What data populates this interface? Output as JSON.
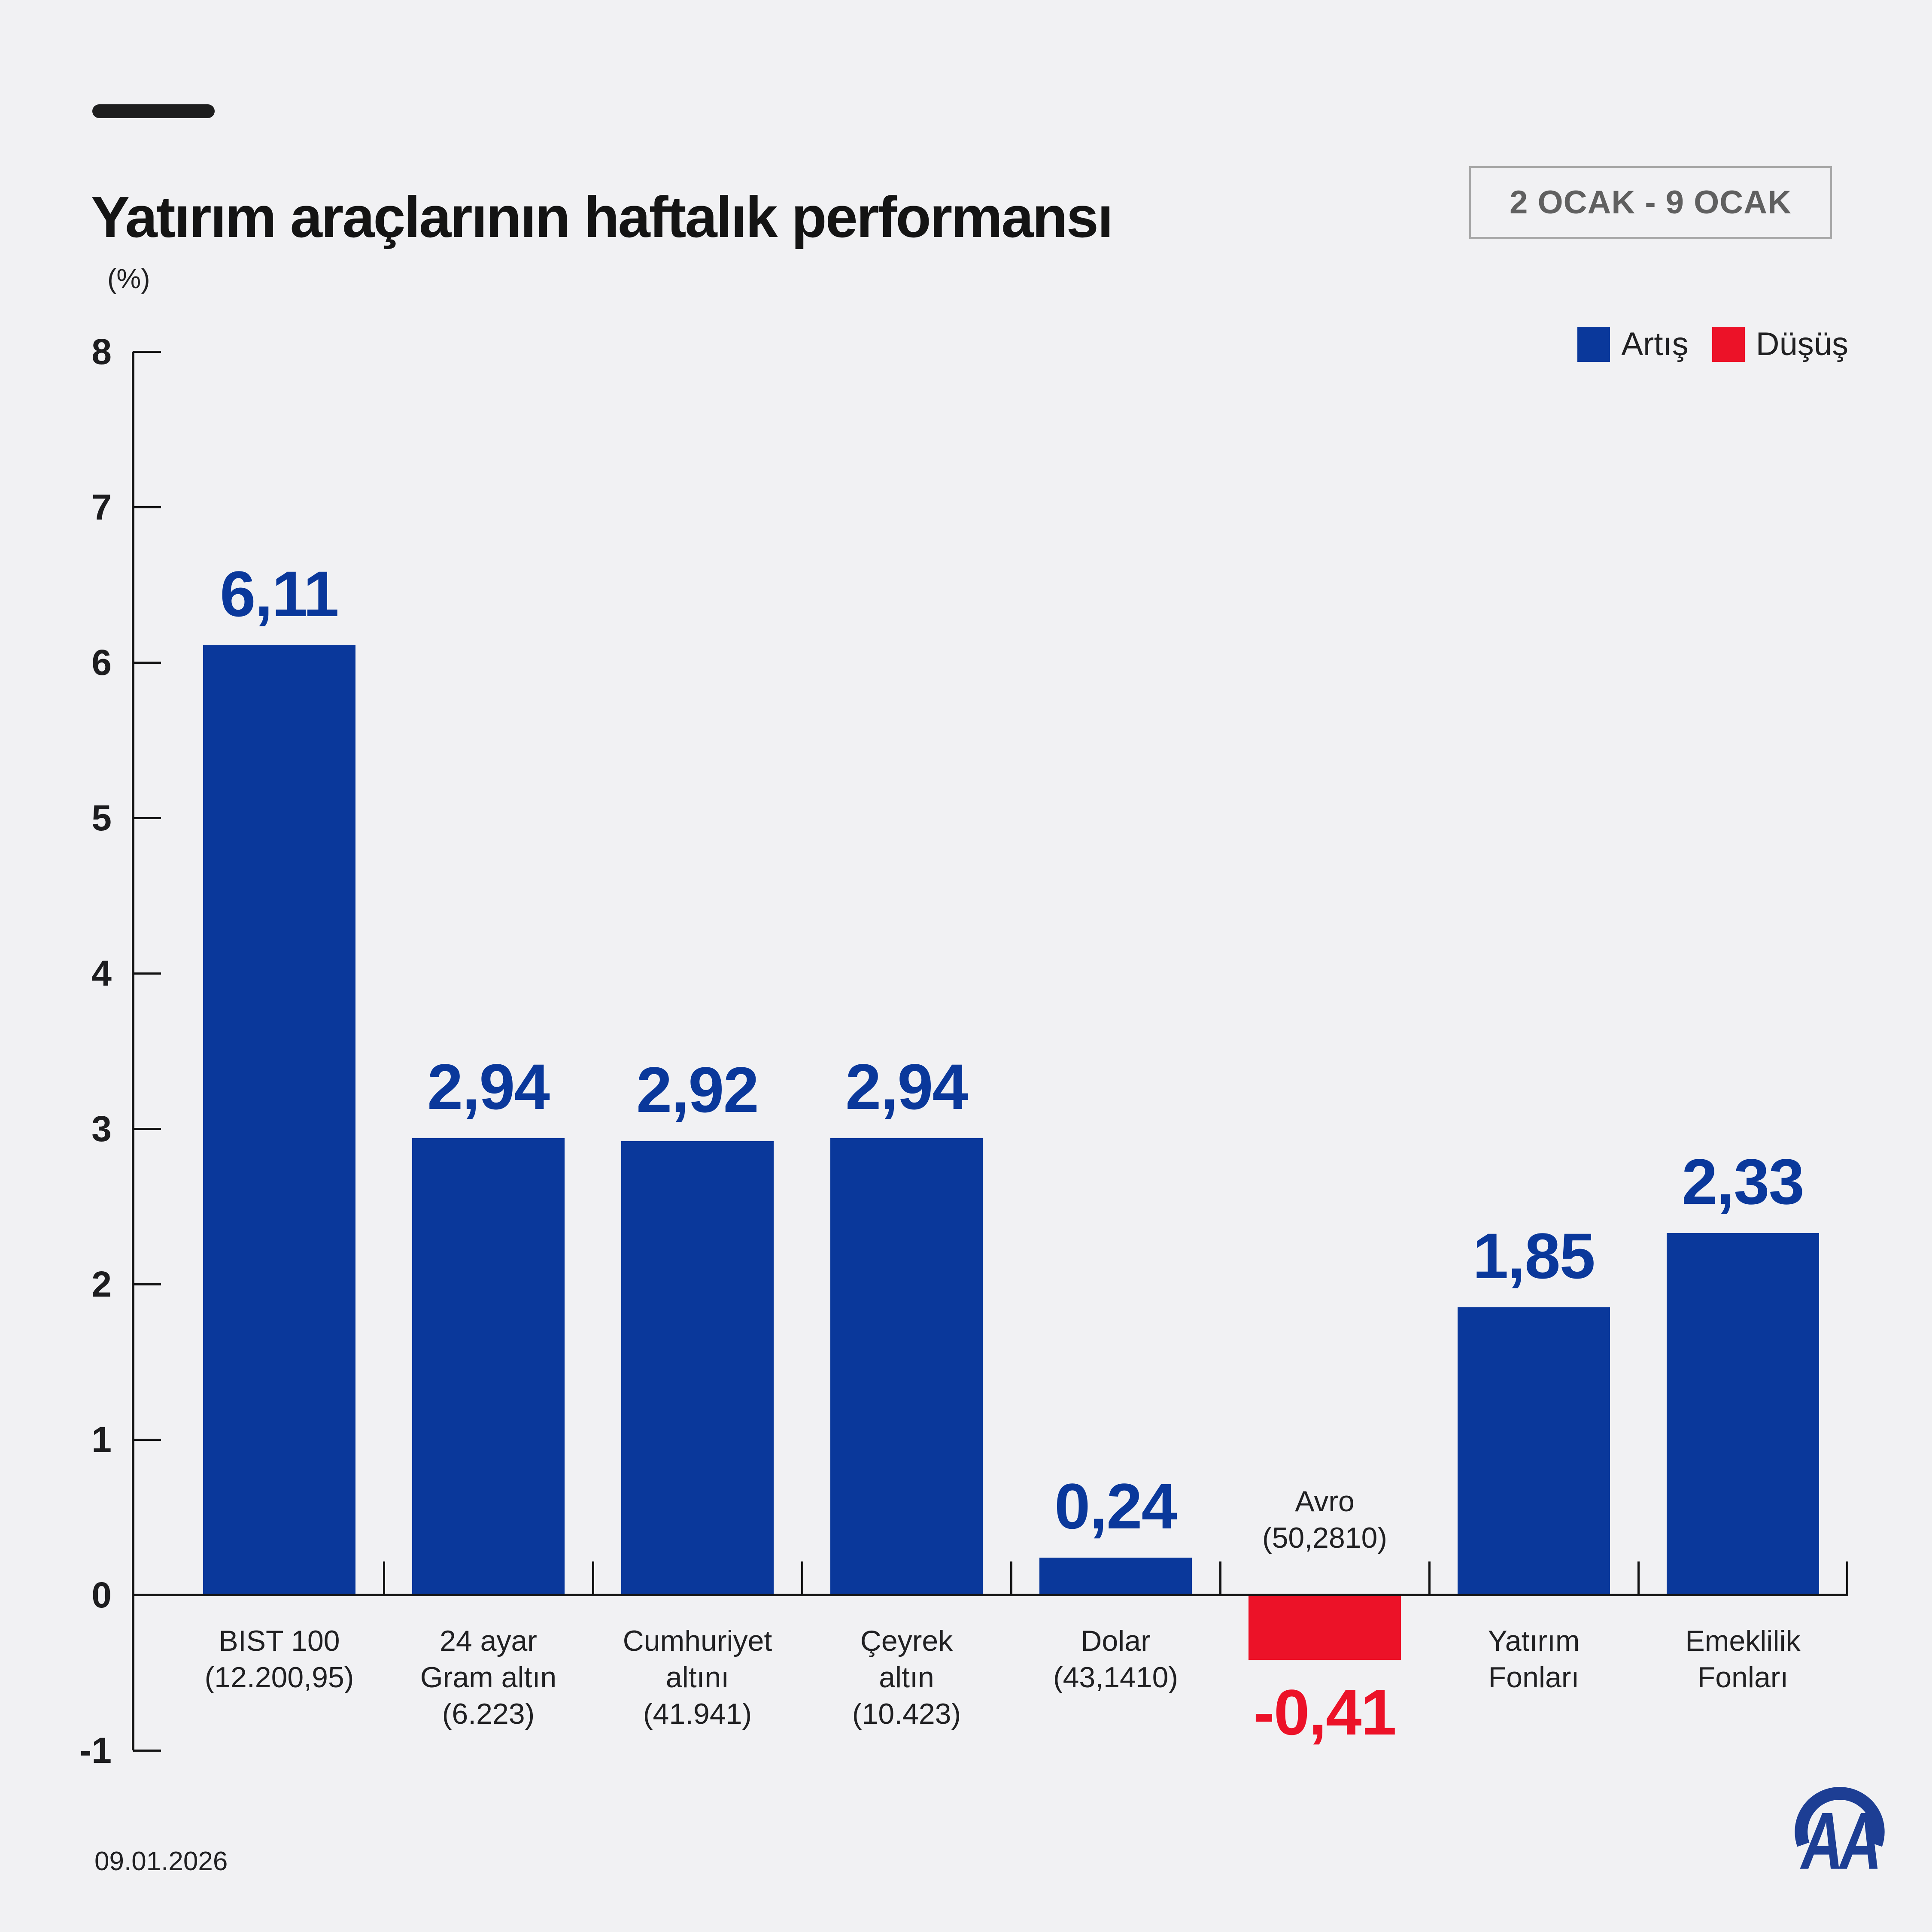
{
  "header": {
    "title": "Yatırım araçlarının haftalık performansı",
    "date_range": "2 OCAK - 9 OCAK"
  },
  "legend": {
    "items": [
      {
        "label": "Artış",
        "color": "#0a389b"
      },
      {
        "label": "Düşüş",
        "color": "#ec1228"
      }
    ]
  },
  "chart_data": {
    "type": "bar",
    "title": "Yatırım araçlarının haftalık performansı",
    "unit_label": "(%)",
    "ylim": [
      -1,
      8
    ],
    "yticks": [
      8,
      7,
      6,
      5,
      4,
      3,
      2,
      1,
      0,
      -1
    ],
    "grid": false,
    "legend_position": "top-right",
    "colors": {
      "positive": "#0a389b",
      "negative": "#ec1228"
    },
    "categories": [
      {
        "lines": [
          "BIST 100",
          "(12.200,95)"
        ],
        "label_position": "below",
        "value": 6.11,
        "value_label": "6,11"
      },
      {
        "lines": [
          "24 ayar",
          "Gram altın",
          "(6.223)"
        ],
        "label_position": "below",
        "value": 2.94,
        "value_label": "2,94"
      },
      {
        "lines": [
          "Cumhuriyet",
          "altını",
          "(41.941)"
        ],
        "label_position": "below",
        "value": 2.92,
        "value_label": "2,92"
      },
      {
        "lines": [
          "Çeyrek",
          "altın",
          "(10.423)"
        ],
        "label_position": "below",
        "value": 2.94,
        "value_label": "2,94"
      },
      {
        "lines": [
          "Dolar",
          "(43,1410)"
        ],
        "label_position": "below",
        "value": 0.24,
        "value_label": "0,24"
      },
      {
        "lines": [
          "Avro",
          "(50,2810)"
        ],
        "label_position": "above",
        "value": -0.41,
        "value_label": "-0,41"
      },
      {
        "lines": [
          "Yatırım",
          "Fonları"
        ],
        "label_position": "below",
        "value": 1.85,
        "value_label": "1,85"
      },
      {
        "lines": [
          "Emeklilik",
          "Fonları"
        ],
        "label_position": "below",
        "value": 2.33,
        "value_label": "2,33"
      }
    ]
  },
  "footer": {
    "date": "09.01.2026",
    "logo_name": "AA"
  }
}
